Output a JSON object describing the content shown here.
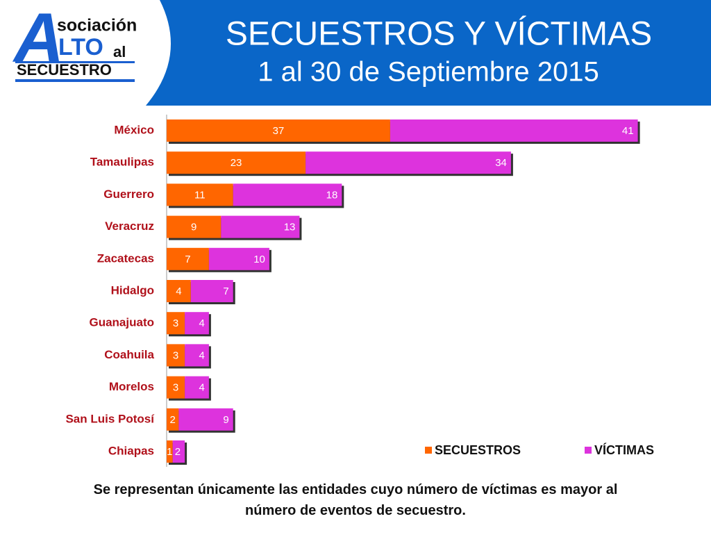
{
  "logo": {
    "initial": "A",
    "first": "sociación",
    "second": "LTO",
    "third": "al",
    "last": "SECUESTRO"
  },
  "chart_data": {
    "type": "stacked-bar-horizontal",
    "title": "SECUESTROS Y VÍCTIMAS",
    "subtitle": "1 al 30 de Septiembre 2015",
    "categories": [
      "México",
      "Tamaulipas",
      "Guerrero",
      "Veracruz",
      "Zacatecas",
      "Hidalgo",
      "Guanajuato",
      "Coahuila",
      "Morelos",
      "San Luis Potosí",
      "Chiapas"
    ],
    "series": [
      {
        "name": "SECUESTROS",
        "color": "#ff6600",
        "values": [
          37,
          23,
          11,
          9,
          7,
          4,
          3,
          3,
          3,
          2,
          1
        ]
      },
      {
        "name": "VÍCTIMAS",
        "color": "#dd33dd",
        "values": [
          41,
          34,
          18,
          13,
          10,
          7,
          4,
          4,
          4,
          9,
          2
        ]
      }
    ],
    "xlim": [
      0,
      80
    ],
    "legend": "bottom-right",
    "note": "Se representan únicamente las entidades cuyo número de víctimas es mayor al número de eventos de secuestro."
  }
}
